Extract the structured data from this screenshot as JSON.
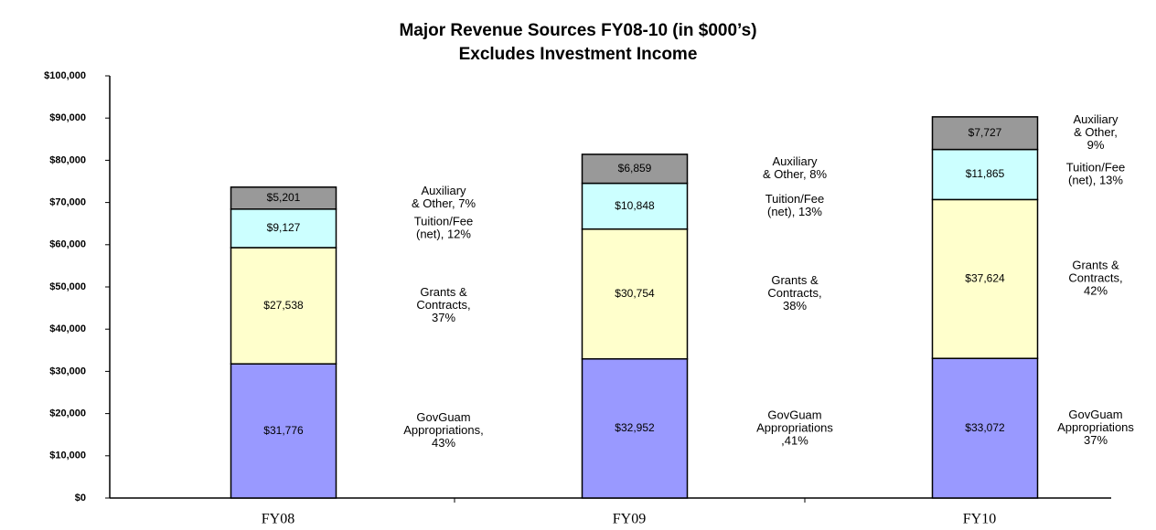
{
  "chart_data": {
    "type": "stacked_bar",
    "title": "Major Revenue Sources FY08-10 (in $000’s)",
    "subtitle": "Excludes Investment Income",
    "categories": [
      "FY08",
      "FY09",
      "FY10"
    ],
    "ylim": [
      0,
      100000
    ],
    "yticks": [
      {
        "value": 0,
        "label": "$0"
      },
      {
        "value": 10000,
        "label": "$10,000"
      },
      {
        "value": 20000,
        "label": "$20,000"
      },
      {
        "value": 30000,
        "label": "$30,000"
      },
      {
        "value": 40000,
        "label": "$40,000"
      },
      {
        "value": 50000,
        "label": "$50,000"
      },
      {
        "value": 60000,
        "label": "$60,000"
      },
      {
        "value": 70000,
        "label": "$70,000"
      },
      {
        "value": 80000,
        "label": "$80,000"
      },
      {
        "value": 90000,
        "label": "$90,000"
      },
      {
        "value": 100000,
        "label": "$100,000"
      }
    ],
    "series": [
      {
        "color": "#9999ff",
        "values": [
          31776,
          32952,
          33072
        ],
        "value_labels": [
          "$31,776",
          "$32,952",
          "$33,072"
        ],
        "annotations": [
          [
            "GovGuam",
            "Appropriations,",
            "43%"
          ],
          [
            "GovGuam",
            "Appropriations",
            ",41%"
          ],
          [
            "GovGuam",
            "Appropriations",
            "37%"
          ]
        ]
      },
      {
        "color": "#ffffcc",
        "values": [
          27538,
          30754,
          37624
        ],
        "value_labels": [
          "$27,538",
          "$30,754",
          "$37,624"
        ],
        "annotations": [
          [
            "Grants &",
            "Contracts,",
            "37%"
          ],
          [
            "Grants &",
            "Contracts,",
            "38%"
          ],
          [
            "Grants &",
            "Contracts,",
            "42%"
          ]
        ]
      },
      {
        "color": "#ccffff",
        "values": [
          9127,
          10848,
          11865
        ],
        "value_labels": [
          "$9,127",
          "$10,848",
          "$11,865"
        ],
        "annotations": [
          [
            "Tuition/Fee",
            "(net), 12%"
          ],
          [
            "Tuition/Fee",
            "(net), 13%"
          ],
          [
            "Tuition/Fee",
            "(net), 13%"
          ]
        ]
      },
      {
        "color": "#999999",
        "values": [
          5201,
          6859,
          7727
        ],
        "value_labels": [
          "$5,201",
          "$6,859",
          "$7,727"
        ],
        "annotations": [
          [
            "Auxiliary",
            "& Other, 7%"
          ],
          [
            "Auxiliary",
            "& Other, 8%"
          ],
          [
            "Auxiliary",
            "& Other,",
            "9%"
          ]
        ]
      }
    ]
  }
}
